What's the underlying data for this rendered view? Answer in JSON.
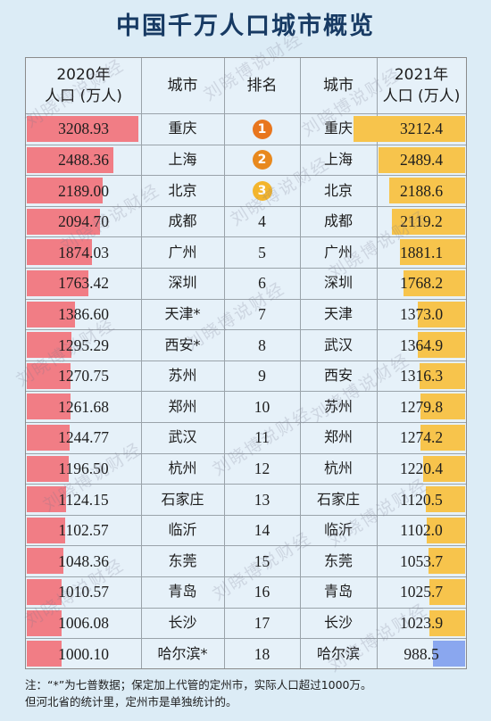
{
  "title": "中国千万人口城市概览",
  "headers": {
    "col1_line1": "2020年",
    "col1_line2": "人口 (万人)",
    "col2": "城市",
    "col3": "排名",
    "col4": "城市",
    "col5_line1": "2021年",
    "col5_line2": "人口 (万人)"
  },
  "chart_data": {
    "type": "table",
    "bar_max": 3212.4,
    "rows": [
      {
        "pop2020": "3208.93",
        "city2020": "重庆",
        "rank": "1",
        "city2021": "重庆",
        "pop2021": "3212.4"
      },
      {
        "pop2020": "2488.36",
        "city2020": "上海",
        "rank": "2",
        "city2021": "上海",
        "pop2021": "2489.4"
      },
      {
        "pop2020": "2189.00",
        "city2020": "北京",
        "rank": "3",
        "city2021": "北京",
        "pop2021": "2188.6"
      },
      {
        "pop2020": "2094.70",
        "city2020": "成都",
        "rank": "4",
        "city2021": "成都",
        "pop2021": "2119.2"
      },
      {
        "pop2020": "1874.03",
        "city2020": "广州",
        "rank": "5",
        "city2021": "广州",
        "pop2021": "1881.1"
      },
      {
        "pop2020": "1763.42",
        "city2020": "深圳",
        "rank": "6",
        "city2021": "深圳",
        "pop2021": "1768.2"
      },
      {
        "pop2020": "1386.60",
        "city2020": "天津*",
        "rank": "7",
        "city2021": "天津",
        "pop2021": "1373.0"
      },
      {
        "pop2020": "1295.29",
        "city2020": "西安*",
        "rank": "8",
        "city2021": "武汉",
        "pop2021": "1364.9"
      },
      {
        "pop2020": "1270.75",
        "city2020": "苏州",
        "rank": "9",
        "city2021": "西安",
        "pop2021": "1316.3"
      },
      {
        "pop2020": "1261.68",
        "city2020": "郑州",
        "rank": "10",
        "city2021": "苏州",
        "pop2021": "1279.8"
      },
      {
        "pop2020": "1244.77",
        "city2020": "武汉",
        "rank": "11",
        "city2021": "郑州",
        "pop2021": "1274.2"
      },
      {
        "pop2020": "1196.50",
        "city2020": "杭州",
        "rank": "12",
        "city2021": "杭州",
        "pop2021": "1220.4"
      },
      {
        "pop2020": "1124.15",
        "city2020": "石家庄",
        "rank": "13",
        "city2021": "石家庄",
        "pop2021": "1120.5"
      },
      {
        "pop2020": "1102.57",
        "city2020": "临沂",
        "rank": "14",
        "city2021": "临沂",
        "pop2021": "1102.0"
      },
      {
        "pop2020": "1048.36",
        "city2020": "东莞",
        "rank": "15",
        "city2021": "东莞",
        "pop2021": "1053.7"
      },
      {
        "pop2020": "1010.57",
        "city2020": "青岛",
        "rank": "16",
        "city2021": "青岛",
        "pop2021": "1025.7"
      },
      {
        "pop2020": "1006.08",
        "city2020": "长沙",
        "rank": "17",
        "city2021": "长沙",
        "pop2021": "1023.9"
      },
      {
        "pop2020": "1000.10",
        "city2020": "哈尔滨*",
        "rank": "18",
        "city2021": "哈尔滨",
        "pop2021": "988.5"
      }
    ]
  },
  "colors": {
    "bar_2020": "#f17d85",
    "bar_2021": "#f7c44c",
    "bar_2021_below": "#8aa7ef",
    "medal_gold": "#e8761e",
    "medal_silver": "#e8891e",
    "medal_bronze": "#f3b52d"
  },
  "footnote_line1": "注：“*”为七普数据；保定加上代管的定州市，实际人口超过1000万。",
  "footnote_line2": "但河北省的统计里，定州市是单独统计的。",
  "watermark": "刘晓博说财经"
}
